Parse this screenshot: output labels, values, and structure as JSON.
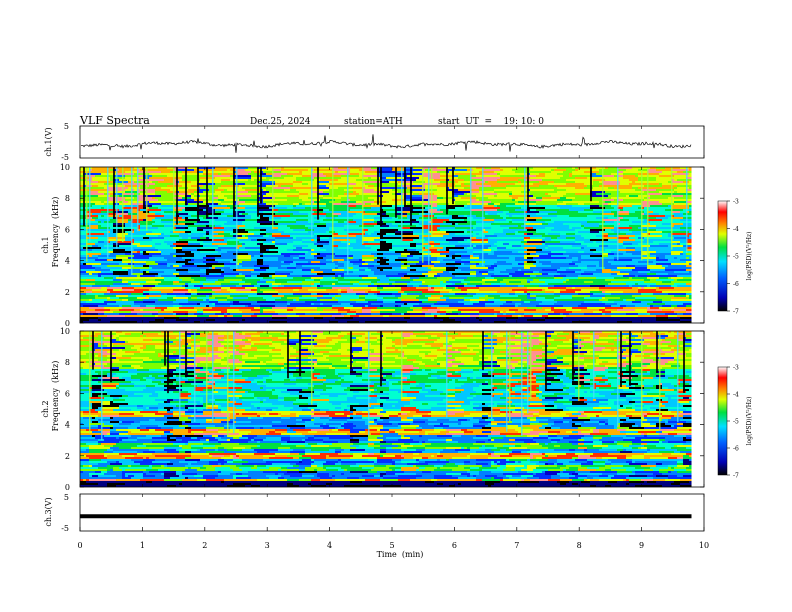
{
  "header": {
    "title": "VLF  Spectra",
    "date": "Dec.25, 2024",
    "station": "station=ATH",
    "start": "start  UT  =    19: 10: 0"
  },
  "chart_data": [
    {
      "type": "line",
      "name": "ch1-waveform",
      "ylabel": "ch.1(V)",
      "ylim": [
        -5,
        5
      ],
      "yticks": [
        "5",
        "-5"
      ],
      "color": "#000000",
      "description_level": -0.7
    },
    {
      "type": "heatmap",
      "name": "ch1-spectrogram",
      "ylabel_top": "ch.1",
      "ylabel": "Frequency  (kHz)",
      "ylim": [
        0,
        10
      ],
      "yticks": [
        "0",
        "2",
        "4",
        "6",
        "8",
        "10"
      ],
      "colorbar": {
        "label": "log(PSD)(V²/Hz)",
        "range": [
          -7,
          -3
        ],
        "ticks": [
          "-3",
          "-4",
          "-5",
          "-6",
          "-7"
        ]
      },
      "bands_khz": [
        {
          "f": 0.3,
          "level": "high"
        },
        {
          "f": 0.8,
          "level": "high"
        },
        {
          "f": 1.6,
          "level": "medium"
        },
        {
          "f": 2.1,
          "level": "high"
        },
        {
          "f": 2.7,
          "level": "medium"
        },
        {
          "f": 3.4,
          "level": "low"
        },
        {
          "f": 5.5,
          "level": "low"
        }
      ]
    },
    {
      "type": "heatmap",
      "name": "ch2-spectrogram",
      "ylabel_top": "ch.2",
      "ylabel": "Frequency  (kHz)",
      "ylim": [
        0,
        10
      ],
      "yticks": [
        "0",
        "2",
        "4",
        "6",
        "8",
        "10"
      ],
      "colorbar": {
        "label": "log(PSD)(V²/Hz)",
        "range": [
          -7,
          -3
        ],
        "ticks": [
          "-3",
          "-4",
          "-5",
          "-6",
          "-7"
        ]
      },
      "bands_khz": [
        {
          "f": 0.3,
          "level": "high"
        },
        {
          "f": 1.2,
          "level": "medium"
        },
        {
          "f": 2.0,
          "level": "high"
        },
        {
          "f": 2.6,
          "level": "medium"
        },
        {
          "f": 3.5,
          "level": "high"
        },
        {
          "f": 4.7,
          "level": "high"
        }
      ]
    },
    {
      "type": "line",
      "name": "ch3-waveform",
      "ylabel": "ch.3(V)",
      "ylim": [
        -5,
        5
      ],
      "yticks": [
        "5",
        "-5"
      ],
      "color": "#000000",
      "level": -1.0
    }
  ],
  "xaxis": {
    "label": "Time  (min)",
    "xlim": [
      0,
      10
    ],
    "ticks": [
      "0",
      "1",
      "2",
      "3",
      "4",
      "5",
      "6",
      "7",
      "8",
      "9",
      "10"
    ],
    "data_end": 9.8
  }
}
